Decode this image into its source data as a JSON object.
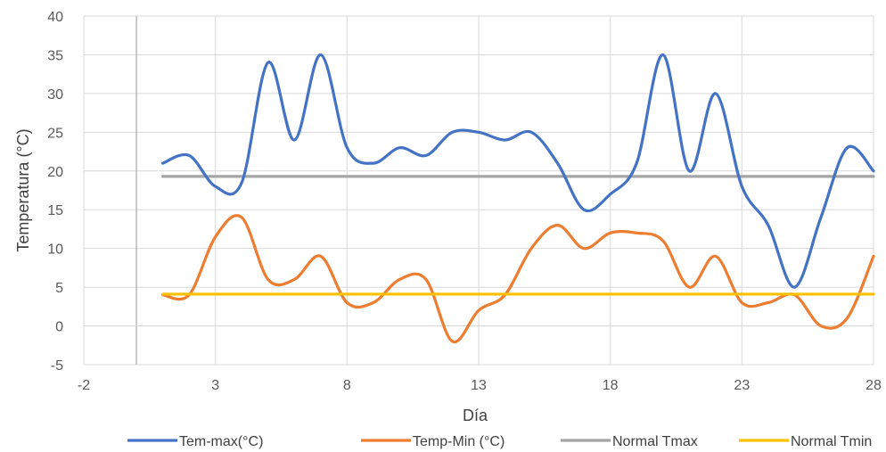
{
  "chart_data": {
    "type": "line",
    "title": "",
    "xlabel": "Día",
    "ylabel": "Temperatura (°C)",
    "xlim": [
      -2,
      28
    ],
    "ylim": [
      -5,
      40
    ],
    "xticks": [
      -2,
      3,
      8,
      13,
      18,
      23,
      28
    ],
    "yticks": [
      -5,
      0,
      5,
      10,
      15,
      20,
      25,
      30,
      35,
      40
    ],
    "grid": true,
    "legend_position": "bottom",
    "series": [
      {
        "name": "Tem-max(°C)",
        "color": "#4472C4",
        "smooth": true,
        "x": [
          1,
          2,
          3,
          4,
          5,
          6,
          7,
          8,
          9,
          10,
          11,
          12,
          13,
          14,
          15,
          16,
          17,
          18,
          19,
          20,
          21,
          22,
          23,
          24,
          25,
          26,
          27,
          28
        ],
        "y": [
          21,
          22,
          18,
          18.5,
          34,
          24,
          35,
          23,
          21,
          23,
          22,
          25,
          25,
          24,
          25,
          21,
          15,
          17,
          21,
          35,
          20,
          30,
          18,
          13,
          5,
          14,
          23,
          20
        ]
      },
      {
        "name": "Temp-Min (°C)",
        "color": "#ED7D31",
        "smooth": true,
        "x": [
          1,
          2,
          3,
          4,
          5,
          6,
          7,
          8,
          9,
          10,
          11,
          12,
          13,
          14,
          15,
          16,
          17,
          18,
          19,
          20,
          21,
          22,
          23,
          24,
          25,
          26,
          27,
          28
        ],
        "y": [
          4,
          4,
          11.5,
          14,
          6,
          6,
          9,
          3,
          3,
          6,
          6,
          -2,
          2,
          4,
          10,
          13,
          10,
          12,
          12,
          11,
          5,
          9,
          3,
          3,
          4,
          0,
          1,
          9
        ]
      },
      {
        "name": "Normal Tmax",
        "color": "#A5A5A5",
        "smooth": false,
        "x": [
          1,
          28
        ],
        "y": [
          19.3,
          19.3
        ]
      },
      {
        "name": "Normal Tmin",
        "color": "#FFC000",
        "smooth": false,
        "x": [
          1,
          28
        ],
        "y": [
          4.1,
          4.1
        ]
      }
    ]
  }
}
